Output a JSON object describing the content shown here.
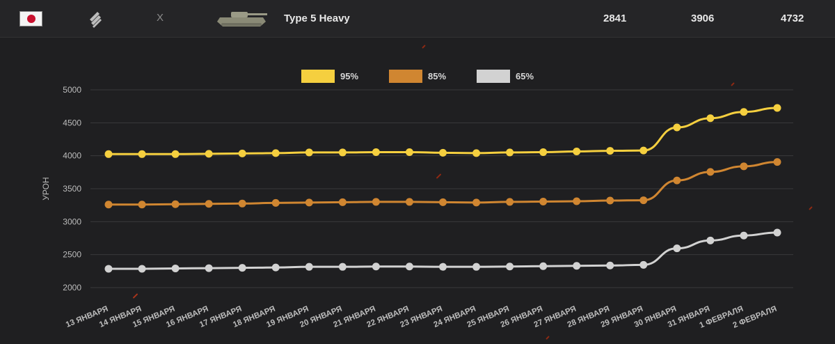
{
  "header": {
    "flag_icon": "japan-flag-icon",
    "tier_icon": "heavy-tank-class-icon",
    "separator": "X",
    "tank_icon": "tank-silhouette-icon",
    "tank_name": "Type 5 Heavy",
    "stats": [
      "2841",
      "3906",
      "4732"
    ]
  },
  "chart_data": {
    "type": "line",
    "ylabel": "УРОН",
    "ylim": [
      2000,
      5000
    ],
    "yticks": [
      2000,
      2500,
      3000,
      3500,
      4000,
      4500,
      5000
    ],
    "grid": true,
    "legend_placement": "top-center",
    "categories": [
      "13 ЯНВАРЯ",
      "14 ЯНВАРЯ",
      "15 ЯНВАРЯ",
      "16 ЯНВАРЯ",
      "17 ЯНВАРЯ",
      "18 ЯНВАРЯ",
      "19 ЯНВАРЯ",
      "20 ЯНВАРЯ",
      "21 ЯНВАРЯ",
      "22 ЯНВАРЯ",
      "23 ЯНВАРЯ",
      "24 ЯНВАРЯ",
      "25 ЯНВАРЯ",
      "26 ЯНВАРЯ",
      "27 ЯНВАРЯ",
      "28 ЯНВАРЯ",
      "29 ЯНВАРЯ",
      "30 ЯНВАРЯ",
      "31 ЯНВАРЯ",
      "1 ФЕВРАЛЯ",
      "2 ФЕВРАЛЯ"
    ],
    "series": [
      {
        "name": "95%",
        "color": "#f5cf3f",
        "values": [
          4025,
          4025,
          4025,
          4030,
          4035,
          4040,
          4050,
          4050,
          4055,
          4055,
          4045,
          4040,
          4050,
          4055,
          4065,
          4075,
          4080,
          4430,
          4570,
          4665,
          4725
        ]
      },
      {
        "name": "85%",
        "color": "#d08631",
        "values": [
          3260,
          3260,
          3265,
          3270,
          3275,
          3285,
          3290,
          3295,
          3300,
          3300,
          3295,
          3290,
          3300,
          3305,
          3310,
          3320,
          3325,
          3625,
          3755,
          3840,
          3905
        ]
      },
      {
        "name": "65%",
        "color": "#d2d2d2",
        "values": [
          2285,
          2285,
          2290,
          2295,
          2300,
          2305,
          2315,
          2315,
          2320,
          2320,
          2315,
          2315,
          2320,
          2325,
          2330,
          2335,
          2345,
          2595,
          2715,
          2790,
          2835
        ]
      }
    ]
  }
}
